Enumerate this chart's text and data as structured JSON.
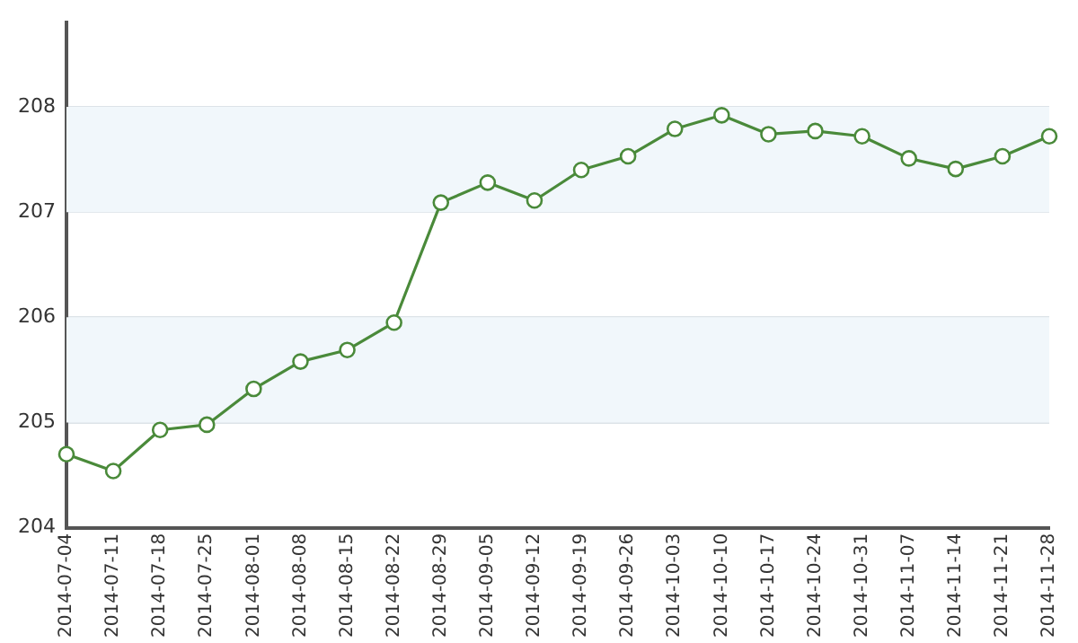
{
  "chart_data": {
    "type": "line",
    "categories": [
      "2014-07-04",
      "2014-07-11",
      "2014-07-18",
      "2014-07-25",
      "2014-08-01",
      "2014-08-08",
      "2014-08-15",
      "2014-08-22",
      "2014-08-29",
      "2014-09-05",
      "2014-09-12",
      "2014-09-19",
      "2014-09-26",
      "2014-10-03",
      "2014-10-10",
      "2014-10-17",
      "2014-10-24",
      "2014-10-31",
      "2014-11-07",
      "2014-11-14",
      "2014-11-21",
      "2014-11-28"
    ],
    "series": [
      {
        "color": "#4a8a3a",
        "values": [
          204.7,
          204.54,
          204.93,
          204.98,
          205.32,
          205.58,
          205.69,
          205.95,
          207.09,
          207.28,
          207.11,
          207.4,
          207.53,
          207.79,
          207.92,
          207.74,
          207.77,
          207.72,
          207.51,
          207.41,
          207.53,
          207.72
        ]
      }
    ],
    "ylim": [
      204,
      208.8
    ],
    "yticks": [
      204,
      205,
      206,
      207,
      208
    ],
    "grid": "y",
    "legend": false,
    "marker": "circle",
    "line_style": "solid"
  }
}
